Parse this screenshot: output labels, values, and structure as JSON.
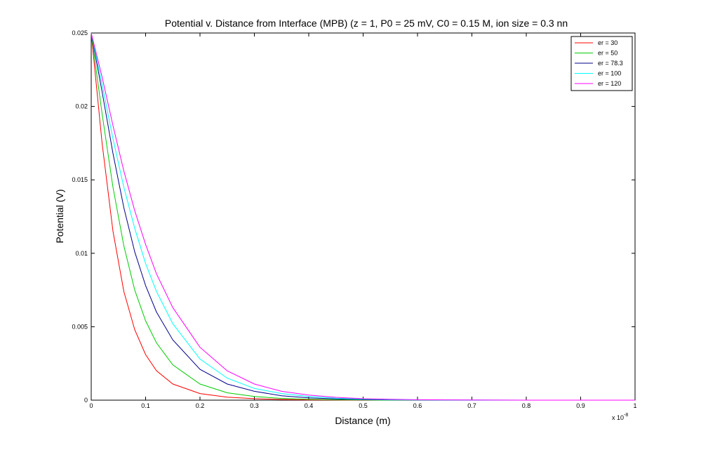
{
  "chart_data": {
    "type": "line",
    "title": "Potential v. Distance from Interface (MPB) (z = 1, P0 = 25 mV, C0 = 0.15 M, ion size = 0.3 nn",
    "xlabel": "Distance (m)",
    "ylabel": "Potential (V)",
    "x_exponent": "x 10",
    "x_exponent_power": "-8",
    "xlim": [
      0,
      1
    ],
    "ylim": [
      0,
      0.025
    ],
    "xticks": [
      0,
      0.1,
      0.2,
      0.3,
      0.4,
      0.5,
      0.6,
      0.7,
      0.8,
      0.9,
      1
    ],
    "xtick_labels": [
      "0",
      "0.1",
      "0.2",
      "0.3",
      "0.4",
      "0.5",
      "0.6",
      "0.7",
      "0.8",
      "0.9",
      "1"
    ],
    "yticks": [
      0,
      0.005,
      0.01,
      0.015,
      0.02,
      0.025
    ],
    "ytick_labels": [
      "0",
      "0.005",
      "0.01",
      "0.015",
      "0.02",
      "0.025"
    ],
    "grid": false,
    "legend_position": "top-right",
    "x": [
      0,
      0.02,
      0.04,
      0.06,
      0.08,
      0.1,
      0.12,
      0.15,
      0.2,
      0.25,
      0.3,
      0.35,
      0.4,
      0.45,
      0.5,
      0.55,
      0.6,
      0.7,
      0.8,
      0.9,
      1
    ],
    "series": [
      {
        "name": "er = 30",
        "color": "#ff0000",
        "values": [
          0.025,
          0.0175,
          0.0115,
          0.0074,
          0.0048,
          0.0031,
          0.002,
          0.0011,
          0.00045,
          0.0002,
          0.0001,
          5e-05,
          2e-05,
          1e-05,
          0,
          0,
          0,
          0,
          0,
          0,
          0
        ]
      },
      {
        "name": "er = 50",
        "color": "#00cc00",
        "values": [
          0.025,
          0.0195,
          0.0145,
          0.0105,
          0.0075,
          0.0054,
          0.0039,
          0.0024,
          0.0011,
          0.0005,
          0.00025,
          0.00012,
          6e-05,
          3e-05,
          1e-05,
          0,
          0,
          0,
          0,
          0,
          0
        ]
      },
      {
        "name": "er = 78.3",
        "color": "#00008b",
        "values": [
          0.025,
          0.021,
          0.0168,
          0.0131,
          0.0101,
          0.0078,
          0.006,
          0.0041,
          0.0021,
          0.0011,
          0.0006,
          0.0003,
          0.00016,
          8e-05,
          4e-05,
          2e-05,
          1e-05,
          0,
          0,
          0,
          0
        ]
      },
      {
        "name": "er = 100",
        "color": "#00ffff",
        "values": [
          0.025,
          0.0215,
          0.0178,
          0.0145,
          0.0117,
          0.0093,
          0.0074,
          0.0052,
          0.0028,
          0.0015,
          0.0008,
          0.00045,
          0.00025,
          0.00013,
          7e-05,
          4e-05,
          2e-05,
          1e-05,
          0,
          0,
          0
        ]
      },
      {
        "name": "er = 120",
        "color": "#ff00ff",
        "values": [
          0.025,
          0.022,
          0.0187,
          0.0156,
          0.0129,
          0.0106,
          0.0086,
          0.0063,
          0.0036,
          0.002,
          0.0011,
          0.0006,
          0.00035,
          0.00019,
          0.0001,
          6e-05,
          3e-05,
          1e-05,
          0,
          0,
          0
        ]
      }
    ]
  }
}
